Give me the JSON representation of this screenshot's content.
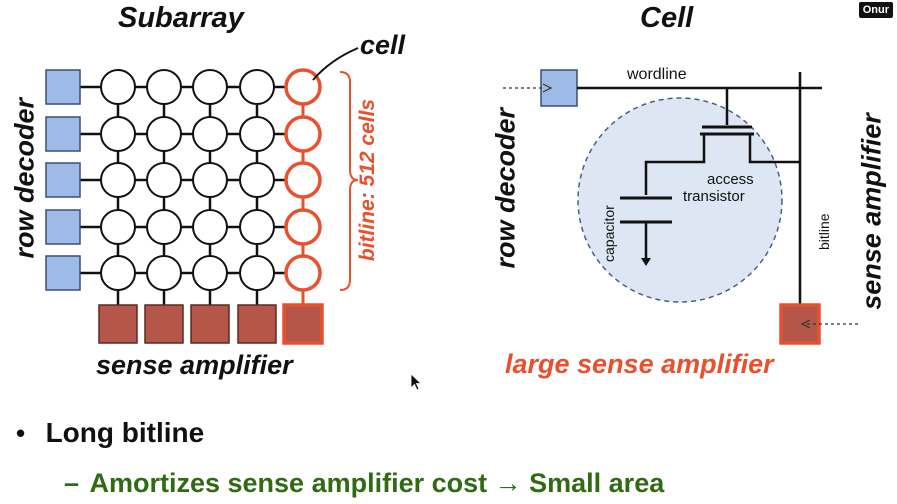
{
  "badge": "Onur",
  "subarray": {
    "title": "Subarray",
    "row_decoder_label": "row decoder",
    "sense_amplifier_label": "sense amplifier",
    "cell_label": "cell",
    "bitline_label": "bitline: 512 cells"
  },
  "cell_diagram": {
    "title": "Cell",
    "row_decoder_label": "row decoder",
    "sense_amplifier_label": "sense amplifier",
    "wordline_label": "wordline",
    "bitline_label": "bitline",
    "capacitor_label": "capacitor",
    "access_transistor_line1": "access",
    "access_transistor_line2": "transistor",
    "large_sense_amp_label": "large sense amplifier"
  },
  "bullets": {
    "main": "Long bitline",
    "sub": "Amortizes sense amplifier cost → Small area",
    "sub_dash": "–"
  },
  "colors": {
    "decoder_blue": "#9dbbe6",
    "sense_amp_brown": "#b5564a",
    "highlight_orange": "#e8502e",
    "sub_green": "#2e6b12",
    "circle_fill": "#dde6f2"
  }
}
